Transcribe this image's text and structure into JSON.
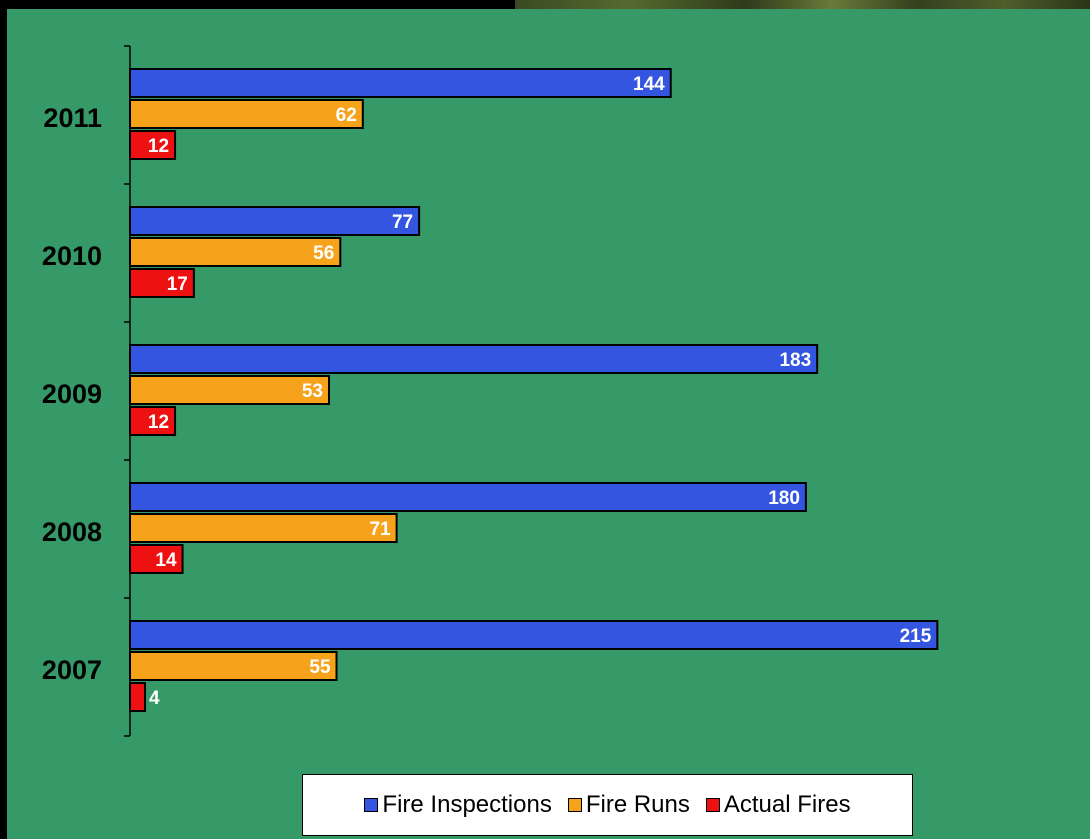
{
  "chart_data": {
    "type": "bar",
    "orientation": "horizontal",
    "categories": [
      "2011",
      "2010",
      "2009",
      "2008",
      "2007"
    ],
    "series": [
      {
        "name": "Fire Inspections",
        "color": "#3355e0",
        "values": [
          144,
          77,
          183,
          180,
          215
        ]
      },
      {
        "name": "Fire Runs",
        "color": "#f7a21b",
        "values": [
          62,
          56,
          53,
          71,
          55
        ]
      },
      {
        "name": "Actual Fires",
        "color": "#ee1111",
        "values": [
          12,
          17,
          12,
          14,
          4
        ]
      }
    ],
    "xlim": [
      0,
      220
    ],
    "grid": false,
    "legend_position": "bottom",
    "data_labels": true
  },
  "colors": {
    "background": "#359a67",
    "frame": "#000000"
  }
}
